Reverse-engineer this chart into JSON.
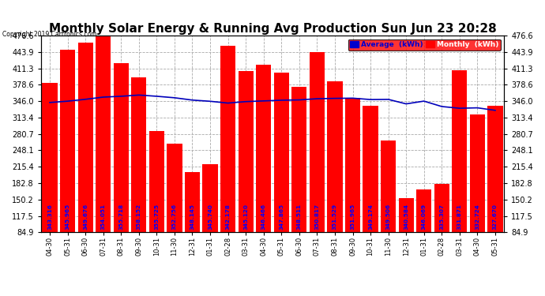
{
  "title": "Monthly Solar Energy & Running Avg Production Sun Jun 23 20:28",
  "copyright": "Copyright 2019 Cartronics.com",
  "categories": [
    "04-30",
    "05-31",
    "06-30",
    "07-31",
    "08-31",
    "09-30",
    "10-31",
    "11-30",
    "12-31",
    "01-31",
    "02-28",
    "03-31",
    "04-30",
    "05-31",
    "06-30",
    "07-31",
    "08-31",
    "09-30",
    "10-31",
    "11-30",
    "12-31",
    "01-31",
    "02-28",
    "03-31",
    "04-30",
    "05-31"
  ],
  "bar_values": [
    383,
    449,
    462,
    476,
    422,
    393,
    287,
    262,
    205,
    220,
    456,
    406,
    418,
    403,
    375,
    444,
    386,
    352,
    337,
    268,
    153,
    171,
    181,
    408,
    320,
    337
  ],
  "avg_values": [
    343.316,
    345.965,
    349.676,
    354.051,
    355.718,
    358.152,
    355.725,
    352.756,
    348.145,
    345.74,
    342.178,
    345.12,
    346.466,
    347.865,
    348.511,
    350.817,
    351.529,
    351.965,
    349.174,
    349.506,
    340.584,
    346.069,
    335.307,
    331.871,
    332.724,
    327.67
  ],
  "bar_color": "#ff0000",
  "avg_line_color": "#0000bb",
  "bar_label_color": "#0000ff",
  "background_color": "#ffffff",
  "plot_bg_color": "#ffffff",
  "grid_color": "#aaaaaa",
  "yticks": [
    84.9,
    117.5,
    150.2,
    182.8,
    215.4,
    248.1,
    280.7,
    313.4,
    346.0,
    378.6,
    411.3,
    443.9,
    476.6
  ],
  "ylim": [
    84.9,
    476.6
  ],
  "title_fontsize": 11,
  "bar_label_fontsize": 5.2,
  "legend_avg_label": "Average  (kWh)",
  "legend_monthly_label": "Monthly  (kWh)",
  "legend_avg_color": "#0000cc",
  "legend_monthly_color": "#ff0000",
  "legend_avg_text_color": "#0000cc",
  "legend_monthly_text_color": "#ffffff"
}
